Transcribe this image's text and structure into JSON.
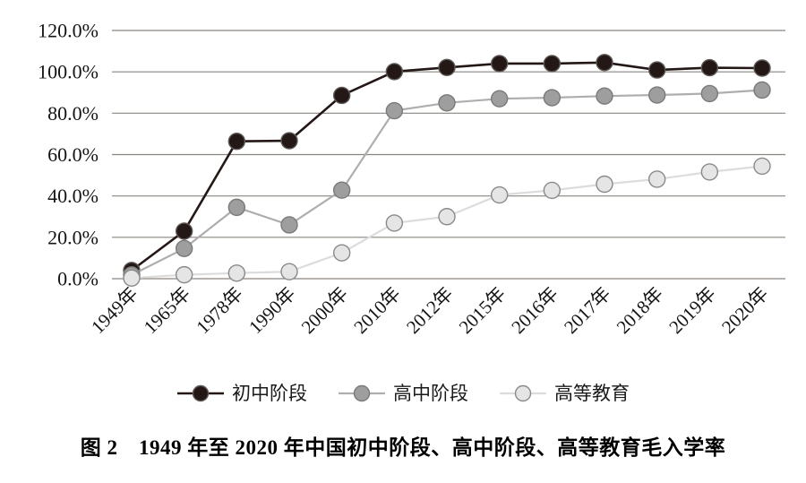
{
  "figure": {
    "caption": "图 2　1949 年至 2020 年中国初中阶段、高中阶段、高等教育毛入学率"
  },
  "chart_data": {
    "type": "line",
    "title": "图 2　1949 年至 2020 年中国初中阶段、高中阶段、高等教育毛入学率",
    "xlabel": "",
    "ylabel": "",
    "categories": [
      "1949年",
      "1965年",
      "1978年",
      "1990年",
      "2000年",
      "2010年",
      "2012年",
      "2015年",
      "2016年",
      "2017年",
      "2018年",
      "2019年",
      "2020年"
    ],
    "series": [
      {
        "name": "初中阶段",
        "values": [
          4.0,
          23.0,
          66.4,
          66.7,
          88.6,
          100.1,
          102.1,
          104.0,
          104.0,
          104.5,
          100.9,
          102.0,
          101.8
        ],
        "line_color": "#231815",
        "marker_fill": "#231815",
        "marker_stroke": "#5f5a57",
        "line_width": 2.6
      },
      {
        "name": "高中阶段",
        "values": [
          1.8,
          14.6,
          34.5,
          26.0,
          42.8,
          81.2,
          85.0,
          87.0,
          87.5,
          88.3,
          88.8,
          89.5,
          91.2
        ],
        "line_color": "#aeaeae",
        "marker_fill": "#9e9e9e",
        "marker_stroke": "#7a7a7a",
        "line_width": 2.2
      },
      {
        "name": "高等教育",
        "values": [
          0.3,
          1.9,
          2.7,
          3.4,
          12.5,
          26.9,
          30.0,
          40.5,
          42.7,
          45.7,
          48.1,
          51.6,
          54.4
        ],
        "line_color": "#dcdcdc",
        "marker_fill": "#e5e5e5",
        "marker_stroke": "#8a8a8a",
        "line_width": 2.2
      }
    ],
    "ylim": [
      0,
      120
    ],
    "yticks": [
      0,
      20,
      40,
      60,
      80,
      100,
      120
    ],
    "ytick_labels": [
      "0.0%",
      "20.0%",
      "40.0%",
      "60.0%",
      "80.0%",
      "100.0%",
      "120.0%"
    ],
    "unit": "percent",
    "grid": "horizontal",
    "grid_color": "#8a8580",
    "legend_position": "bottom",
    "x_label_rotation": -45
  }
}
